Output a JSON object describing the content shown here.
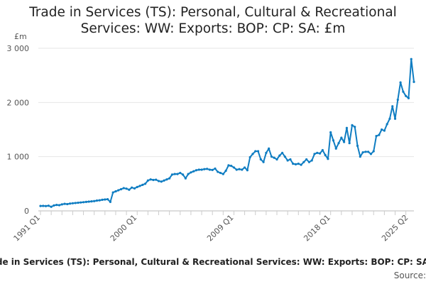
{
  "chart_data": {
    "type": "line",
    "title_lines": [
      "Trade in Services (TS): Personal, Cultural & Recreational",
      "Services: WW: Exports: BOP: CP: SA: £m"
    ],
    "y_unit": "£m",
    "ylim": [
      0,
      3000
    ],
    "y_ticks": [
      {
        "value": 0,
        "label": "0"
      },
      {
        "value": 1000,
        "label": "1 000"
      },
      {
        "value": 2000,
        "label": "2 000"
      },
      {
        "value": 3000,
        "label": "3 000"
      }
    ],
    "x_tick_labels": [
      "1991 Q1",
      "2000 Q1",
      "2009 Q1",
      "2018 Q1",
      "2025 Q2"
    ],
    "x_tick_positions": [
      0,
      36,
      72,
      108,
      137
    ],
    "grid": "horizontal",
    "line_color": "#0f7dc2",
    "legend_label": "Trade in Services (TS): Personal, Cultural & Recreational Services: WW: Exports: BOP: CP: SA: £m",
    "source_label": "Source:",
    "x_start": "1991 Q1",
    "x_end": "2025 Q2",
    "frequency": "quarterly",
    "series": [
      {
        "name": "Trade in Services (TS): Personal, Cultural & Recreational Services: WW: Exports: BOP: CP: SA: £m",
        "values": [
          90,
          92,
          88,
          95,
          75,
          100,
          110,
          105,
          120,
          130,
          125,
          135,
          140,
          145,
          150,
          155,
          160,
          165,
          170,
          175,
          180,
          190,
          195,
          205,
          210,
          215,
          165,
          340,
          360,
          380,
          400,
          420,
          410,
          390,
          430,
          415,
          440,
          460,
          480,
          500,
          560,
          580,
          570,
          575,
          550,
          540,
          560,
          580,
          600,
          670,
          680,
          680,
          700,
          670,
          600,
          680,
          710,
          730,
          750,
          760,
          760,
          770,
          775,
          760,
          755,
          780,
          720,
          700,
          680,
          740,
          840,
          830,
          800,
          760,
          770,
          760,
          800,
          750,
          990,
          1050,
          1100,
          1100,
          950,
          900,
          1070,
          1150,
          1000,
          980,
          950,
          1020,
          1070,
          1000,
          930,
          950,
          870,
          860,
          870,
          850,
          900,
          950,
          900,
          930,
          1050,
          1070,
          1060,
          1120,
          1030,
          960,
          1450,
          1300,
          1150,
          1250,
          1350,
          1270,
          1530,
          1250,
          1580,
          1550,
          1200,
          1000,
          1080,
          1090,
          1090,
          1050,
          1100,
          1380,
          1400,
          1500,
          1480,
          1600,
          1700,
          1930,
          1700,
          2050,
          2370,
          2200,
          2120,
          2080,
          2800,
          2380
        ]
      }
    ]
  }
}
